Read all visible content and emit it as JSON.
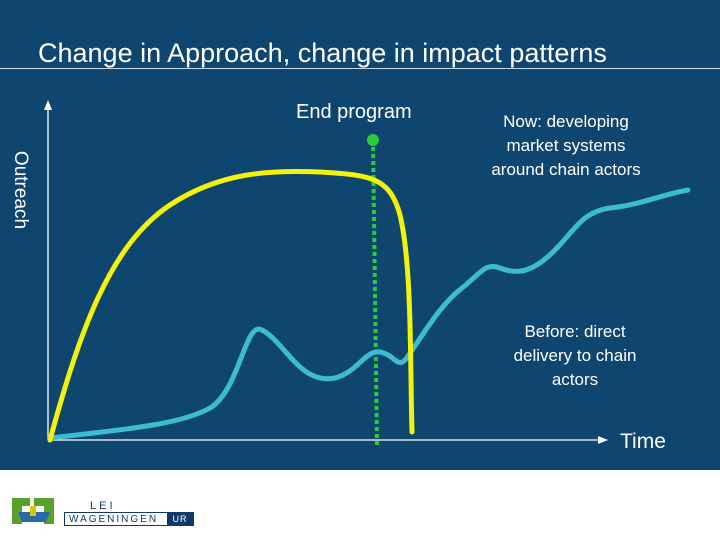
{
  "title": "Change in Approach, change in impact patterns",
  "y_axis_label": "Outreach",
  "x_axis_label": "Time",
  "markers": {
    "end_program": "End program"
  },
  "curves": {
    "now": {
      "label": "Now: developing market systems around chain actors",
      "color": "#3cbcd2"
    },
    "before": {
      "label": "Before: direct delivery to chain actors",
      "color": "#f2f20a"
    }
  },
  "colors": {
    "background": "#0f4670",
    "end_program_marker": "#29cc3a",
    "axes": "#ffffff"
  },
  "footer": {
    "logo_line1": "LEI",
    "logo_line2": "WAGENINGEN",
    "logo_badge": "UR"
  }
}
